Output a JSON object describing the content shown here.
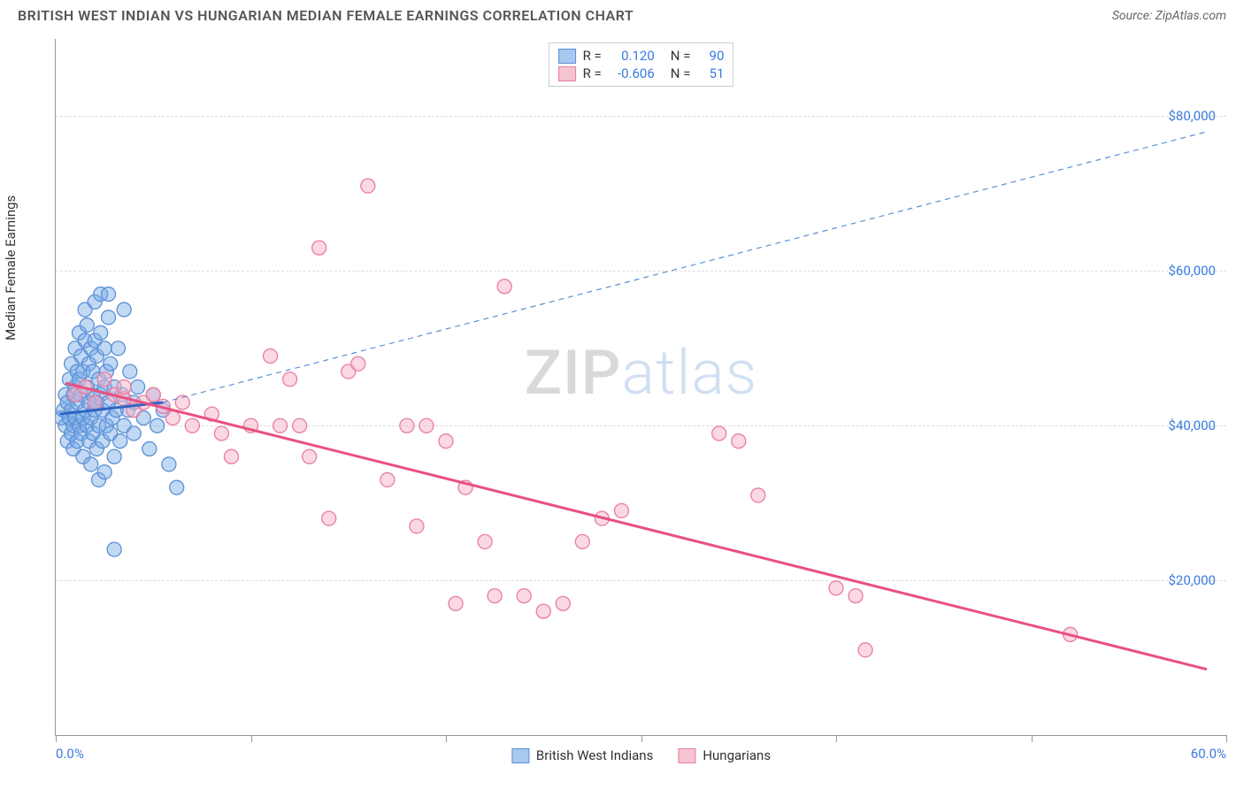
{
  "title": "BRITISH WEST INDIAN VS HUNGARIAN MEDIAN FEMALE EARNINGS CORRELATION CHART",
  "source_label": "Source: ZipAtlas.com",
  "ylabel": "Median Female Earnings",
  "watermark": {
    "part1": "ZIP",
    "part2": "atlas"
  },
  "chart": {
    "type": "scatter",
    "background_color": "#ffffff",
    "grid_color": "#dddddd",
    "axis_color": "#999999",
    "label_color": "#3a7be0",
    "xlim": [
      0,
      60
    ],
    "ylim": [
      0,
      90000
    ],
    "x_axis": {
      "tick_positions": [
        0,
        10,
        20,
        30,
        40,
        50,
        60
      ],
      "end_labels": {
        "min": "0.0%",
        "max": "60.0%"
      }
    },
    "y_axis": {
      "gridlines": [
        20000,
        40000,
        60000,
        80000
      ],
      "tick_labels": [
        "$20,000",
        "$40,000",
        "$60,000",
        "$80,000"
      ]
    },
    "legend_top": [
      {
        "swatch_fill": "#a8c8ef",
        "swatch_border": "#5b8fd6",
        "r_label": "R =",
        "r_value": "0.120",
        "n_label": "N =",
        "n_value": "90"
      },
      {
        "swatch_fill": "#f6c4d0",
        "swatch_border": "#e97ca0",
        "r_label": "R =",
        "r_value": "-0.606",
        "n_label": "N =",
        "n_value": "51"
      }
    ],
    "legend_bottom": [
      {
        "swatch_fill": "#a8c8ef",
        "swatch_border": "#5b8fd6",
        "label": "British West Indians"
      },
      {
        "swatch_fill": "#f6c4d0",
        "swatch_border": "#e97ca0",
        "label": "Hungarians"
      }
    ],
    "series": [
      {
        "name": "British West Indians",
        "marker_fill": "rgba(120,170,230,0.45)",
        "marker_stroke": "#5b8fd6",
        "marker_radius": 8,
        "trend_solid": {
          "x1": 0.2,
          "y1": 41500,
          "x2": 5.5,
          "y2": 43000,
          "color": "#2f66c4",
          "width": 3
        },
        "trend_dashed": {
          "x1": 5.5,
          "y1": 43000,
          "x2": 59,
          "y2": 78000,
          "color": "#5b8fd6",
          "width": 1.2,
          "dash": "6 5"
        },
        "points": [
          [
            0.3,
            41000
          ],
          [
            0.4,
            42000
          ],
          [
            0.5,
            40000
          ],
          [
            0.5,
            44000
          ],
          [
            0.6,
            38000
          ],
          [
            0.6,
            43000
          ],
          [
            0.7,
            41000
          ],
          [
            0.7,
            46000
          ],
          [
            0.8,
            39000
          ],
          [
            0.8,
            42000
          ],
          [
            0.8,
            48000
          ],
          [
            0.9,
            40000
          ],
          [
            0.9,
            44000
          ],
          [
            0.9,
            37000
          ],
          [
            1.0,
            41000
          ],
          [
            1.0,
            45000
          ],
          [
            1.0,
            50000
          ],
          [
            1.1,
            38000
          ],
          [
            1.1,
            43000
          ],
          [
            1.1,
            47000
          ],
          [
            1.2,
            40000
          ],
          [
            1.2,
            46000
          ],
          [
            1.2,
            52000
          ],
          [
            1.3,
            39000
          ],
          [
            1.3,
            44000
          ],
          [
            1.3,
            49000
          ],
          [
            1.4,
            41000
          ],
          [
            1.4,
            47000
          ],
          [
            1.4,
            36000
          ],
          [
            1.5,
            42000
          ],
          [
            1.5,
            51000
          ],
          [
            1.5,
            55000
          ],
          [
            1.6,
            40000
          ],
          [
            1.6,
            45000
          ],
          [
            1.6,
            53000
          ],
          [
            1.7,
            38000
          ],
          [
            1.7,
            43000
          ],
          [
            1.7,
            48000
          ],
          [
            1.8,
            41000
          ],
          [
            1.8,
            50000
          ],
          [
            1.8,
            35000
          ],
          [
            1.9,
            39000
          ],
          [
            1.9,
            44000
          ],
          [
            1.9,
            47000
          ],
          [
            2.0,
            42000
          ],
          [
            2.0,
            51000
          ],
          [
            2.0,
            56000
          ],
          [
            2.1,
            37000
          ],
          [
            2.1,
            43000
          ],
          [
            2.1,
            49000
          ],
          [
            2.2,
            40000
          ],
          [
            2.2,
            46000
          ],
          [
            2.2,
            33000
          ],
          [
            2.3,
            44000
          ],
          [
            2.3,
            52000
          ],
          [
            2.3,
            57000
          ],
          [
            2.4,
            38000
          ],
          [
            2.4,
            42000
          ],
          [
            2.5,
            45000
          ],
          [
            2.5,
            50000
          ],
          [
            2.5,
            34000
          ],
          [
            2.6,
            40000
          ],
          [
            2.6,
            47000
          ],
          [
            2.7,
            43000
          ],
          [
            2.7,
            54000
          ],
          [
            2.8,
            39000
          ],
          [
            2.8,
            48000
          ],
          [
            2.9,
            41000
          ],
          [
            3.0,
            45000
          ],
          [
            3.0,
            36000
          ],
          [
            3.1,
            42000
          ],
          [
            3.2,
            50000
          ],
          [
            3.3,
            38000
          ],
          [
            3.4,
            44000
          ],
          [
            3.5,
            40000
          ],
          [
            3.5,
            55000
          ],
          [
            3.7,
            42000
          ],
          [
            3.8,
            47000
          ],
          [
            4.0,
            39000
          ],
          [
            4.0,
            43000
          ],
          [
            4.2,
            45000
          ],
          [
            4.5,
            41000
          ],
          [
            4.8,
            37000
          ],
          [
            5.0,
            44000
          ],
          [
            5.2,
            40000
          ],
          [
            5.5,
            42000
          ],
          [
            3.0,
            24000
          ],
          [
            2.7,
            57000
          ],
          [
            6.2,
            32000
          ],
          [
            5.8,
            35000
          ]
        ]
      },
      {
        "name": "Hungarians",
        "marker_fill": "rgba(245,180,200,0.5)",
        "marker_stroke": "#e97ca0",
        "marker_radius": 8,
        "trend_solid": {
          "x1": 0.5,
          "y1": 45500,
          "x2": 59,
          "y2": 8500,
          "color": "#e8517f",
          "width": 3
        },
        "trend_dashed": null,
        "points": [
          [
            1.0,
            44000
          ],
          [
            1.5,
            45000
          ],
          [
            2.0,
            43000
          ],
          [
            2.5,
            46000
          ],
          [
            3.0,
            44000
          ],
          [
            3.5,
            43500
          ],
          [
            4.0,
            42000
          ],
          [
            4.5,
            43000
          ],
          [
            5.0,
            44000
          ],
          [
            5.5,
            42500
          ],
          [
            6.0,
            41000
          ],
          [
            7.0,
            40000
          ],
          [
            8.0,
            41500
          ],
          [
            8.5,
            39000
          ],
          [
            9.0,
            36000
          ],
          [
            10.0,
            40000
          ],
          [
            11.0,
            49000
          ],
          [
            11.5,
            40000
          ],
          [
            12.0,
            46000
          ],
          [
            13.0,
            36000
          ],
          [
            13.5,
            63000
          ],
          [
            14.0,
            28000
          ],
          [
            15.0,
            47000
          ],
          [
            15.5,
            48000
          ],
          [
            16.0,
            71000
          ],
          [
            17.0,
            33000
          ],
          [
            18.0,
            40000
          ],
          [
            18.5,
            27000
          ],
          [
            19.0,
            40000
          ],
          [
            20.0,
            38000
          ],
          [
            20.5,
            17000
          ],
          [
            21.0,
            32000
          ],
          [
            22.0,
            25000
          ],
          [
            22.5,
            18000
          ],
          [
            23.0,
            58000
          ],
          [
            24.0,
            18000
          ],
          [
            25.0,
            16000
          ],
          [
            26.0,
            17000
          ],
          [
            27.0,
            25000
          ],
          [
            28.0,
            28000
          ],
          [
            29.0,
            29000
          ],
          [
            34.0,
            39000
          ],
          [
            35.0,
            38000
          ],
          [
            36.0,
            31000
          ],
          [
            40.0,
            19000
          ],
          [
            41.0,
            18000
          ],
          [
            41.5,
            11000
          ],
          [
            52.0,
            13000
          ],
          [
            3.5,
            45000
          ],
          [
            12.5,
            40000
          ],
          [
            6.5,
            43000
          ]
        ]
      }
    ]
  }
}
